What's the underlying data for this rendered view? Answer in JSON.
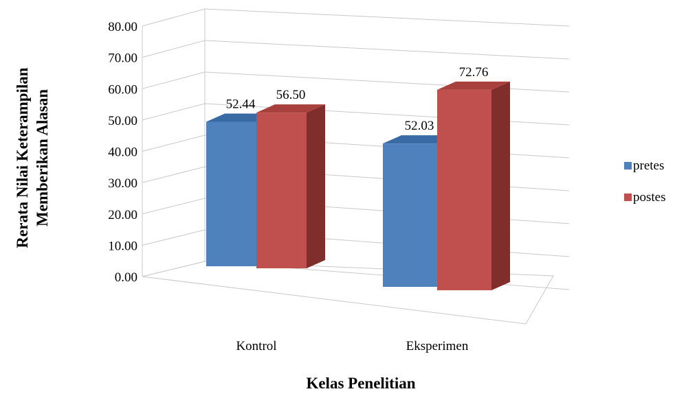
{
  "chart_data": {
    "type": "bar",
    "categories": [
      "Kontrol",
      "Eksperimen"
    ],
    "series": [
      {
        "name": "pretes",
        "values": [
          52.44,
          52.03
        ],
        "labels": [
          "52.44",
          "52.03"
        ]
      },
      {
        "name": "postes",
        "values": [
          56.5,
          72.76
        ],
        "labels": [
          "56.50",
          "72.76"
        ]
      }
    ],
    "title": "",
    "xlabel": "Kelas Penelitian",
    "ylabel_line1": "Rerata Nilai Keterampilan",
    "ylabel_line2": "Memberikan Alasan",
    "ylim": [
      0,
      80
    ],
    "yticks": [
      "0.00",
      "10.00",
      "20.00",
      "30.00",
      "40.00",
      "50.00",
      "60.00",
      "70.00",
      "80.00"
    ],
    "grid": true,
    "legend_position": "right",
    "colors": {
      "pretes_front": "#4f81bd",
      "pretes_top": "#3a6aa3",
      "pretes_side": "#2f5a8c",
      "postes_front": "#c0504d",
      "postes_top": "#a8403d",
      "postes_side": "#7f2e2c"
    }
  }
}
